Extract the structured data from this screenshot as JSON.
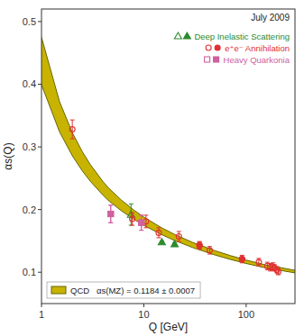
{
  "chart_data": {
    "type": "scatter",
    "annotation": "July 2009",
    "xlabel": "Q [GeV]",
    "ylabel": "αs(Q)",
    "log": "x",
    "grid": false,
    "legend": "upper right",
    "xlim": [
      1,
      300
    ],
    "ylim": [
      0.05,
      0.52
    ],
    "xticks": [
      1,
      10,
      100
    ],
    "yticks": [
      0.1,
      0.2,
      0.3,
      0.4,
      0.5
    ],
    "series": [
      {
        "name": "Deep Inelastic Scattering",
        "color": "#2d8a2d",
        "marker": "triangle-open",
        "x": [
          7.5
        ],
        "values": [
          0.192
        ],
        "errors": [
          0.017
        ]
      },
      {
        "name": "Deep Inelastic Scattering",
        "color": "#2d8a2d",
        "marker": "triangle",
        "x": [
          15.0,
          20.0
        ],
        "values": [
          0.148,
          0.145
        ],
        "errors": [
          0.002,
          0.002
        ]
      },
      {
        "name": "e⁺e⁻ Annihilation",
        "color": "#e03030",
        "marker": "circle-open",
        "x": [
          2.0,
          7.7,
          10.5,
          14.0,
          22.0,
          35.0,
          44.0,
          91.2,
          133.0,
          161.0,
          172.0,
          183.0,
          189.0,
          200.0,
          206.0
        ],
        "values": [
          0.328,
          0.185,
          0.181,
          0.163,
          0.157,
          0.143,
          0.135,
          0.121,
          0.116,
          0.11,
          0.108,
          0.109,
          0.107,
          0.104,
          0.101
        ],
        "errors": [
          0.015,
          0.01,
          0.01,
          0.008,
          0.008,
          0.006,
          0.006,
          0.006,
          0.006,
          0.006,
          0.006,
          0.006,
          0.005,
          0.005,
          0.005
        ]
      },
      {
        "name": "e⁺e⁻ Annihilation",
        "color": "#e03030",
        "marker": "circle",
        "x": [
          35.0,
          91.2
        ],
        "values": [
          0.143,
          0.121
        ],
        "errors": [
          0.005,
          0.003
        ]
      },
      {
        "name": "Heavy Quarkonia",
        "color": "#d060a0",
        "marker": "square-open",
        "x": [
          4.75,
          9.46
        ],
        "values": [
          0.193,
          0.179
        ],
        "errors": [
          0.014,
          0.012
        ]
      },
      {
        "name": "Heavy Quarkonia",
        "color": "#d060a0",
        "marker": "square",
        "x": [
          4.75,
          9.46
        ],
        "values": [
          0.193,
          0.179
        ],
        "errors": [
          0.014,
          0.012
        ]
      },
      {
        "name": "QCD   αs(MZ) = 0.1184 ± 0.0007",
        "type": "band",
        "color": "#c8b400",
        "x": [
          1,
          1.5,
          2,
          2.5,
          3,
          4,
          4.5,
          6,
          8,
          10,
          15,
          20,
          30,
          50,
          70,
          100,
          150,
          175,
          200,
          250,
          300
        ],
        "upper": [
          0.47492,
          0.37225,
          0.32274,
          0.29256,
          0.27179,
          0.24442,
          0.23474,
          0.21545,
          0.19908,
          0.188,
          0.17074,
          0.1603,
          0.14758,
          0.13416,
          0.12658,
          0.11943,
          0.11222,
          0.10971,
          0.10858,
          0.10547,
          0.10305
        ],
        "lower": [
          0.39916,
          0.32404,
          0.28587,
          0.26194,
          0.24517,
          0.22267,
          0.21461,
          0.19836,
          0.18441,
          0.17486,
          0.15983,
          0.15065,
          0.13936,
          0.12733,
          0.12049,
          0.11399,
          0.10741,
          0.1051,
          0.10407,
          0.1012,
          0.09898
        ]
      }
    ]
  }
}
